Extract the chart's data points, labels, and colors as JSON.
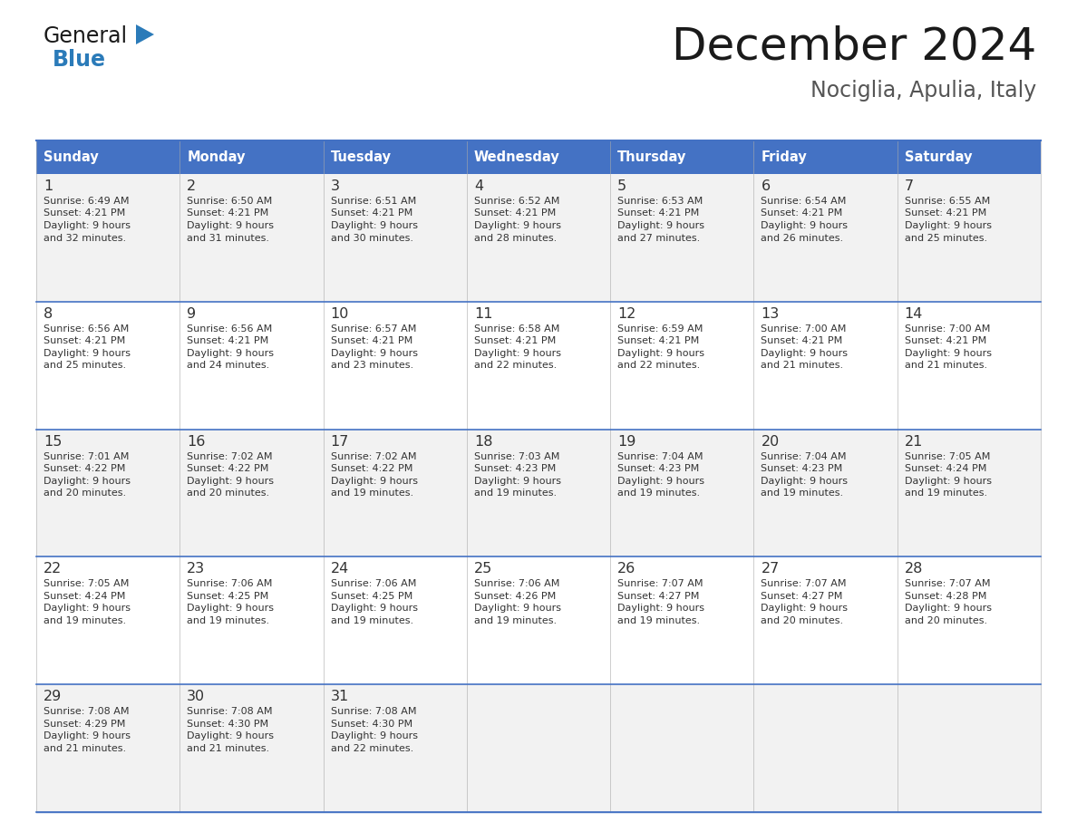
{
  "title": "December 2024",
  "subtitle": "Nociglia, Apulia, Italy",
  "header_bg_color": "#4472C4",
  "header_text_color": "#FFFFFF",
  "row_colors": [
    "#F2F2F2",
    "#FFFFFF"
  ],
  "border_color": "#4472C4",
  "text_color": "#333333",
  "day_names": [
    "Sunday",
    "Monday",
    "Tuesday",
    "Wednesday",
    "Thursday",
    "Friday",
    "Saturday"
  ],
  "weeks": [
    [
      {
        "day": "1",
        "sunrise": "6:49 AM",
        "sunset": "4:21 PM",
        "daylight_a": "9 hours",
        "daylight_b": "and 32 minutes."
      },
      {
        "day": "2",
        "sunrise": "6:50 AM",
        "sunset": "4:21 PM",
        "daylight_a": "9 hours",
        "daylight_b": "and 31 minutes."
      },
      {
        "day": "3",
        "sunrise": "6:51 AM",
        "sunset": "4:21 PM",
        "daylight_a": "9 hours",
        "daylight_b": "and 30 minutes."
      },
      {
        "day": "4",
        "sunrise": "6:52 AM",
        "sunset": "4:21 PM",
        "daylight_a": "9 hours",
        "daylight_b": "and 28 minutes."
      },
      {
        "day": "5",
        "sunrise": "6:53 AM",
        "sunset": "4:21 PM",
        "daylight_a": "9 hours",
        "daylight_b": "and 27 minutes."
      },
      {
        "day": "6",
        "sunrise": "6:54 AM",
        "sunset": "4:21 PM",
        "daylight_a": "9 hours",
        "daylight_b": "and 26 minutes."
      },
      {
        "day": "7",
        "sunrise": "6:55 AM",
        "sunset": "4:21 PM",
        "daylight_a": "9 hours",
        "daylight_b": "and 25 minutes."
      }
    ],
    [
      {
        "day": "8",
        "sunrise": "6:56 AM",
        "sunset": "4:21 PM",
        "daylight_a": "9 hours",
        "daylight_b": "and 25 minutes."
      },
      {
        "day": "9",
        "sunrise": "6:56 AM",
        "sunset": "4:21 PM",
        "daylight_a": "9 hours",
        "daylight_b": "and 24 minutes."
      },
      {
        "day": "10",
        "sunrise": "6:57 AM",
        "sunset": "4:21 PM",
        "daylight_a": "9 hours",
        "daylight_b": "and 23 minutes."
      },
      {
        "day": "11",
        "sunrise": "6:58 AM",
        "sunset": "4:21 PM",
        "daylight_a": "9 hours",
        "daylight_b": "and 22 minutes."
      },
      {
        "day": "12",
        "sunrise": "6:59 AM",
        "sunset": "4:21 PM",
        "daylight_a": "9 hours",
        "daylight_b": "and 22 minutes."
      },
      {
        "day": "13",
        "sunrise": "7:00 AM",
        "sunset": "4:21 PM",
        "daylight_a": "9 hours",
        "daylight_b": "and 21 minutes."
      },
      {
        "day": "14",
        "sunrise": "7:00 AM",
        "sunset": "4:21 PM",
        "daylight_a": "9 hours",
        "daylight_b": "and 21 minutes."
      }
    ],
    [
      {
        "day": "15",
        "sunrise": "7:01 AM",
        "sunset": "4:22 PM",
        "daylight_a": "9 hours",
        "daylight_b": "and 20 minutes."
      },
      {
        "day": "16",
        "sunrise": "7:02 AM",
        "sunset": "4:22 PM",
        "daylight_a": "9 hours",
        "daylight_b": "and 20 minutes."
      },
      {
        "day": "17",
        "sunrise": "7:02 AM",
        "sunset": "4:22 PM",
        "daylight_a": "9 hours",
        "daylight_b": "and 19 minutes."
      },
      {
        "day": "18",
        "sunrise": "7:03 AM",
        "sunset": "4:23 PM",
        "daylight_a": "9 hours",
        "daylight_b": "and 19 minutes."
      },
      {
        "day": "19",
        "sunrise": "7:04 AM",
        "sunset": "4:23 PM",
        "daylight_a": "9 hours",
        "daylight_b": "and 19 minutes."
      },
      {
        "day": "20",
        "sunrise": "7:04 AM",
        "sunset": "4:23 PM",
        "daylight_a": "9 hours",
        "daylight_b": "and 19 minutes."
      },
      {
        "day": "21",
        "sunrise": "7:05 AM",
        "sunset": "4:24 PM",
        "daylight_a": "9 hours",
        "daylight_b": "and 19 minutes."
      }
    ],
    [
      {
        "day": "22",
        "sunrise": "7:05 AM",
        "sunset": "4:24 PM",
        "daylight_a": "9 hours",
        "daylight_b": "and 19 minutes."
      },
      {
        "day": "23",
        "sunrise": "7:06 AM",
        "sunset": "4:25 PM",
        "daylight_a": "9 hours",
        "daylight_b": "and 19 minutes."
      },
      {
        "day": "24",
        "sunrise": "7:06 AM",
        "sunset": "4:25 PM",
        "daylight_a": "9 hours",
        "daylight_b": "and 19 minutes."
      },
      {
        "day": "25",
        "sunrise": "7:06 AM",
        "sunset": "4:26 PM",
        "daylight_a": "9 hours",
        "daylight_b": "and 19 minutes."
      },
      {
        "day": "26",
        "sunrise": "7:07 AM",
        "sunset": "4:27 PM",
        "daylight_a": "9 hours",
        "daylight_b": "and 19 minutes."
      },
      {
        "day": "27",
        "sunrise": "7:07 AM",
        "sunset": "4:27 PM",
        "daylight_a": "9 hours",
        "daylight_b": "and 20 minutes."
      },
      {
        "day": "28",
        "sunrise": "7:07 AM",
        "sunset": "4:28 PM",
        "daylight_a": "9 hours",
        "daylight_b": "and 20 minutes."
      }
    ],
    [
      {
        "day": "29",
        "sunrise": "7:08 AM",
        "sunset": "4:29 PM",
        "daylight_a": "9 hours",
        "daylight_b": "and 21 minutes."
      },
      {
        "day": "30",
        "sunrise": "7:08 AM",
        "sunset": "4:30 PM",
        "daylight_a": "9 hours",
        "daylight_b": "and 21 minutes."
      },
      {
        "day": "31",
        "sunrise": "7:08 AM",
        "sunset": "4:30 PM",
        "daylight_a": "9 hours",
        "daylight_b": "and 22 minutes."
      },
      null,
      null,
      null,
      null
    ]
  ],
  "logo_general_color": "#1a1a1a",
  "logo_blue_color": "#2B7BB9",
  "logo_triangle_color": "#2B7BB9",
  "title_color": "#1a1a1a",
  "subtitle_color": "#555555"
}
